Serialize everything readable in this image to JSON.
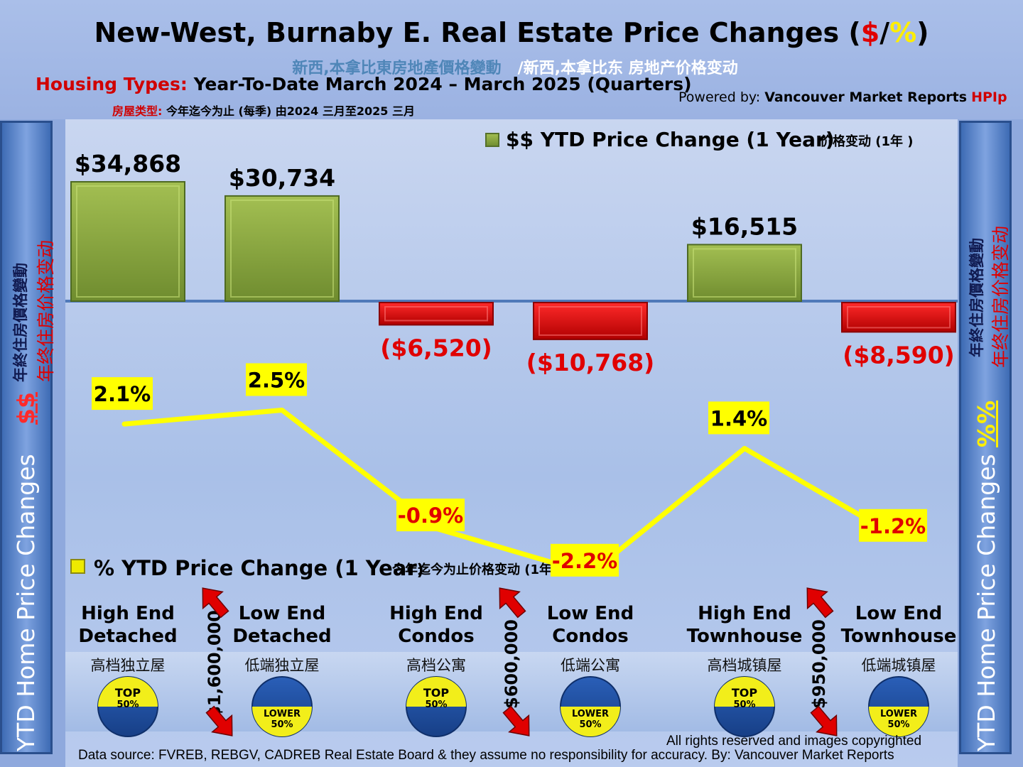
{
  "title": {
    "main": "New-West, Burnaby E. Real Estate Price Changes (",
    "dollar": "$",
    "slash": "/",
    "pct": "%",
    "close": ")"
  },
  "subtitle_cn": {
    "trad": "新西,本拿比東房地產價格變動",
    "simp": "/新西,本拿比东 房地产价格变动"
  },
  "housing": {
    "label": "Housing Types:",
    "text": "Year-To-Date March 2024 – March 2025 (Quarters)"
  },
  "housing_cn": {
    "label": "房屋类型:",
    "text": "今年迄今为止 (每季) 由2024 三月至2025 三月"
  },
  "powered": {
    "label": "Powered by:",
    "name": "Vancouver Market Reports",
    "brand": "HPIp"
  },
  "left_side": {
    "en": "YTD Home Price Changes",
    "sym": "$$",
    "cn_trad": "年終住房價格變動",
    "cn_simp": "年终住房价格变动"
  },
  "right_side": {
    "en": "YTD Home Price  Changes",
    "sym": "%%",
    "cn_trad": "年終住房價格變動",
    "cn_simp": "年终住房价格变动"
  },
  "footer": {
    "rights": "All rights reserved and  images copyrighted",
    "source": "Data source: FVREB, REBGV, CADREB Real Estate Board & they assume no responsibility for accuracy. By: Vancouver Market Reports"
  },
  "chart_data": {
    "type": "bar",
    "categories": [
      "High End Detached",
      "Low End Detached",
      "High End Condos",
      "Low End Condos",
      "High End Townhouse",
      "Low End Townhouse"
    ],
    "categories_en": [
      [
        "High End",
        "Detached"
      ],
      [
        "Low End",
        "Detached"
      ],
      [
        "High End",
        "Condos"
      ],
      [
        "Low End",
        "Condos"
      ],
      [
        "High End",
        "Townhouse"
      ],
      [
        "Low End",
        "Townhouse"
      ]
    ],
    "categories_cn": [
      "高档独立屋",
      "低端独立屋",
      "高档公寓",
      "低端公寓",
      "高档城镇屋",
      "低端城镇屋"
    ],
    "series": [
      {
        "name": "$$ YTD Price Change (1 Year)",
        "name_cn": "价格变动 (1年 )",
        "type": "bar",
        "values": [
          34868,
          30734,
          -6520,
          -10768,
          16515,
          -8590
        ],
        "labels": [
          "$34,868",
          "$30,734",
          "($6,520)",
          "($10,768)",
          "$16,515",
          "($8,590)"
        ]
      },
      {
        "name": "% YTD Price Change (1 Year",
        "name_close": ")",
        "name_cn": "今年迄今为止价格变动 (1年 )",
        "type": "line",
        "values": [
          2.1,
          2.5,
          -0.9,
          -2.2,
          1.4,
          -1.2
        ],
        "labels": [
          "2.1%",
          "2.5%",
          "-0.9%",
          "-2.2%",
          "1.4%",
          "-1.2%"
        ]
      }
    ],
    "dividers": [
      "$1,600,000",
      "$600,000",
      "$950,000"
    ],
    "badges": [
      {
        "top": "TOP",
        "bottom": "50%"
      },
      {
        "top": "LOWER",
        "bottom": "50%"
      },
      {
        "top": "TOP",
        "bottom": "50%"
      },
      {
        "top": "LOWER",
        "bottom": "50%"
      },
      {
        "top": "TOP",
        "bottom": "50%"
      },
      {
        "top": "LOWER",
        "bottom": "50%"
      }
    ],
    "colors": {
      "positive": "#7d9a3a",
      "negative": "#d40000",
      "line": "#ffff00",
      "pos_label": "#000000",
      "neg_label": "#e00000"
    }
  }
}
